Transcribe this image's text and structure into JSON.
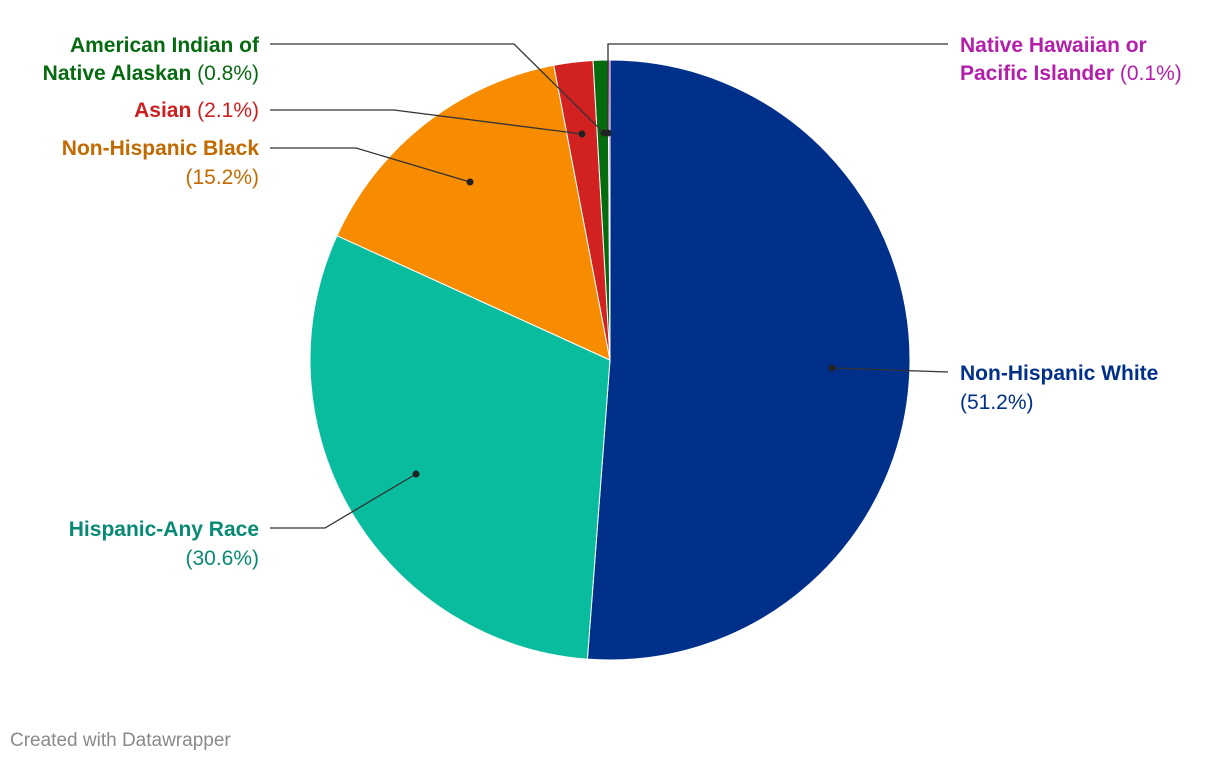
{
  "chart_data": {
    "type": "pie",
    "slices": [
      {
        "name": "Non-Hispanic White",
        "value": 51.2,
        "value_label": "(51.2%)",
        "color": "#00308a"
      },
      {
        "name": "Hispanic-Any Race",
        "value": 30.6,
        "value_label": "(30.6%)",
        "color": "#0abc9e"
      },
      {
        "name": "Non-Hispanic Black",
        "value": 15.2,
        "value_label": "(15.2%)",
        "color": "#f78c00"
      },
      {
        "name": "Asian",
        "value": 2.1,
        "value_label": "(2.1%)",
        "color": "#d12121"
      },
      {
        "name": "American Indian of Native Alaskan",
        "value": 0.8,
        "value_label": "(0.8%)",
        "color": "#046b0e"
      },
      {
        "name": "Native Hawaiian or Pacific Islander",
        "value": 0.1,
        "value_label": "(0.1%)",
        "color": "#b31eaa"
      }
    ],
    "label_colors": {
      "Non-Hispanic White": "#00308a",
      "Hispanic-Any Race": "#078a74",
      "Non-Hispanic Black": "#c26a00",
      "Asian": "#cc2020",
      "American Indian of Native Alaskan": "#066b10",
      "Native Hawaiian or Pacific Islander": "#b31eaa"
    },
    "legend": "none"
  },
  "footer": {
    "credit": "Created with Datawrapper"
  }
}
